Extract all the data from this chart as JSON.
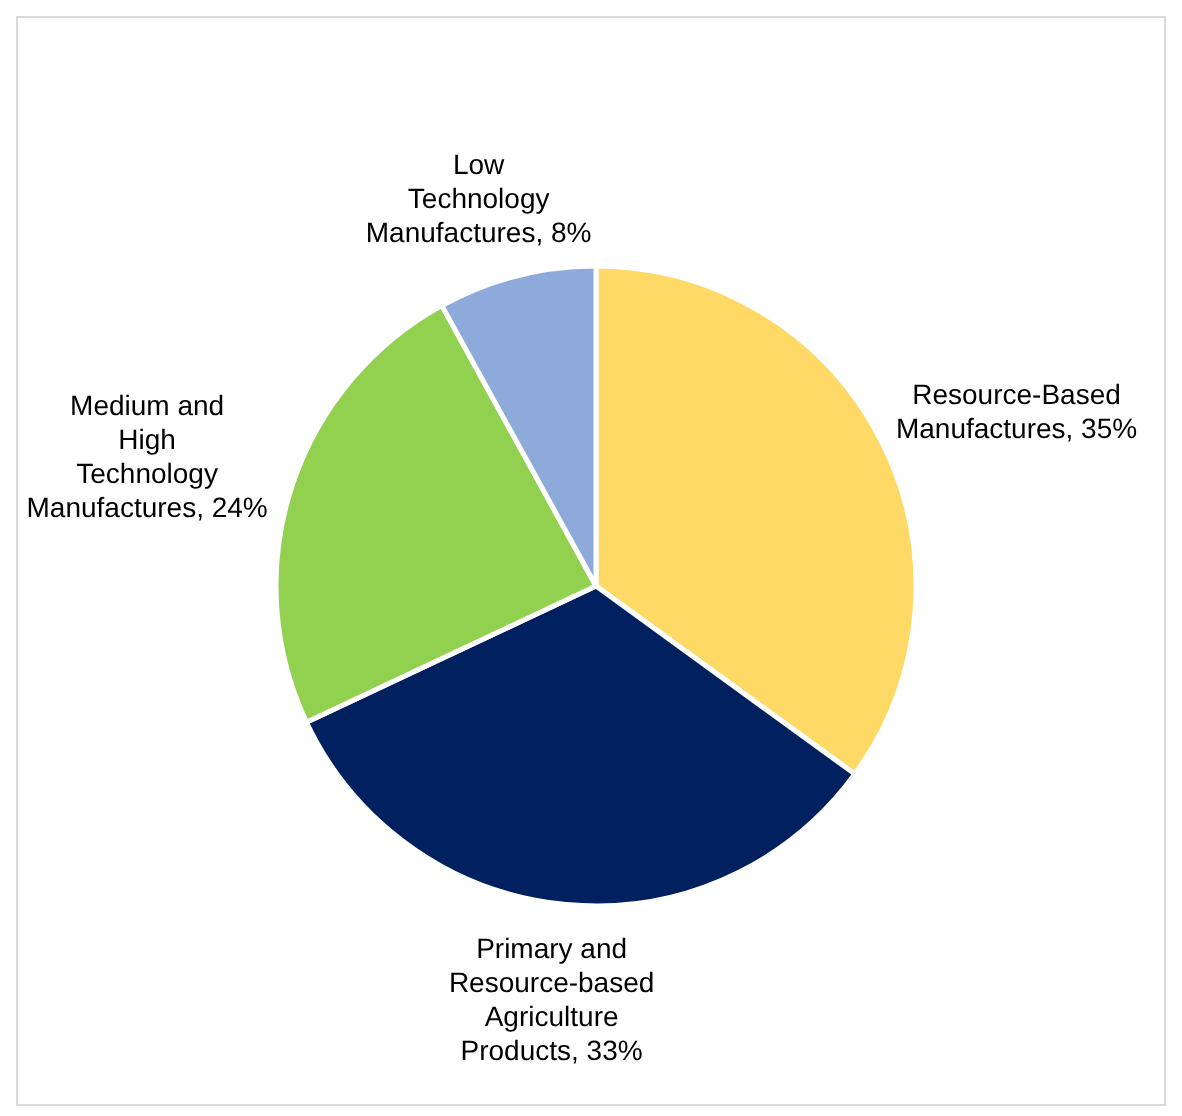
{
  "chart_data": {
    "type": "pie",
    "categories": [
      "Resource-Based Manufactures",
      "Primary and Resource-based Agriculture Products",
      "Medium and High Technology Manufactures",
      "Low Technology Manufactures"
    ],
    "values": [
      35,
      33,
      24,
      8
    ],
    "value_labels": [
      "35%",
      "33%",
      "24%",
      "8%"
    ],
    "colors": [
      "#ffd966",
      "#002060",
      "#92d050",
      "#8eaadb"
    ],
    "legend": false
  }
}
